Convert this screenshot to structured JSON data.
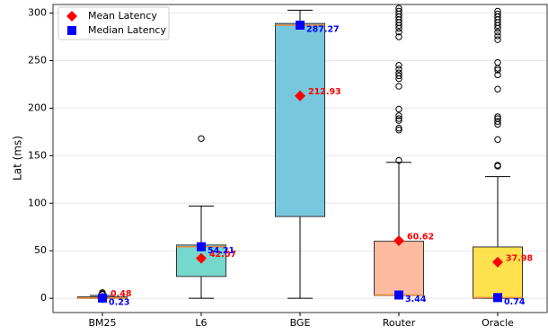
{
  "chart_data": {
    "type": "box",
    "y_label": "Lat (ms)",
    "ylim": [
      -15,
      309
    ],
    "yticks": [
      0,
      50,
      100,
      150,
      200,
      250,
      300
    ],
    "grid": true,
    "legend": "upper left",
    "categories": [
      "BM25",
      "L6",
      "BGE",
      "Router",
      "Oracle"
    ],
    "boxes": [
      {
        "color": "#f4b183",
        "whislo": 0,
        "q1": 0,
        "q3": 1.5,
        "whishi": 3,
        "fliers": [
          4,
          5,
          6
        ]
      },
      {
        "color": "#76d7cd",
        "whislo": 0,
        "q1": 23,
        "q3": 56,
        "whishi": 97,
        "fliers": [
          168
        ]
      },
      {
        "color": "#77c8dc",
        "whislo": 0,
        "q1": 86,
        "q3": 289,
        "whishi": 303,
        "fliers": []
      },
      {
        "color": "#ffbba0",
        "whislo": 3,
        "q1": 3,
        "q3": 60,
        "whishi": 143,
        "fliers": [
          145,
          177,
          179,
          187,
          189,
          192,
          199,
          223,
          231,
          234,
          237,
          241,
          245,
          275,
          280,
          284,
          287,
          290,
          293,
          296,
          299,
          302,
          305
        ]
      },
      {
        "color": "#ffe14d",
        "whislo": 0,
        "q1": 0,
        "q3": 54,
        "whishi": 128,
        "fliers": [
          139,
          140,
          167,
          183,
          186,
          189,
          191,
          220,
          235,
          240,
          242,
          248,
          272,
          276,
          280,
          284,
          287,
          290,
          293,
          296,
          299,
          302
        ]
      }
    ],
    "series": [
      {
        "name": "Mean Latency",
        "color": "#ff0000",
        "marker": "diamond",
        "values": [
          0.48,
          42.07,
          212.93,
          60.62,
          37.98
        ]
      },
      {
        "name": "Median Latency",
        "color": "#0000ff",
        "marker": "square",
        "values": [
          0.23,
          54.21,
          287.27,
          3.44,
          0.74
        ]
      }
    ]
  }
}
